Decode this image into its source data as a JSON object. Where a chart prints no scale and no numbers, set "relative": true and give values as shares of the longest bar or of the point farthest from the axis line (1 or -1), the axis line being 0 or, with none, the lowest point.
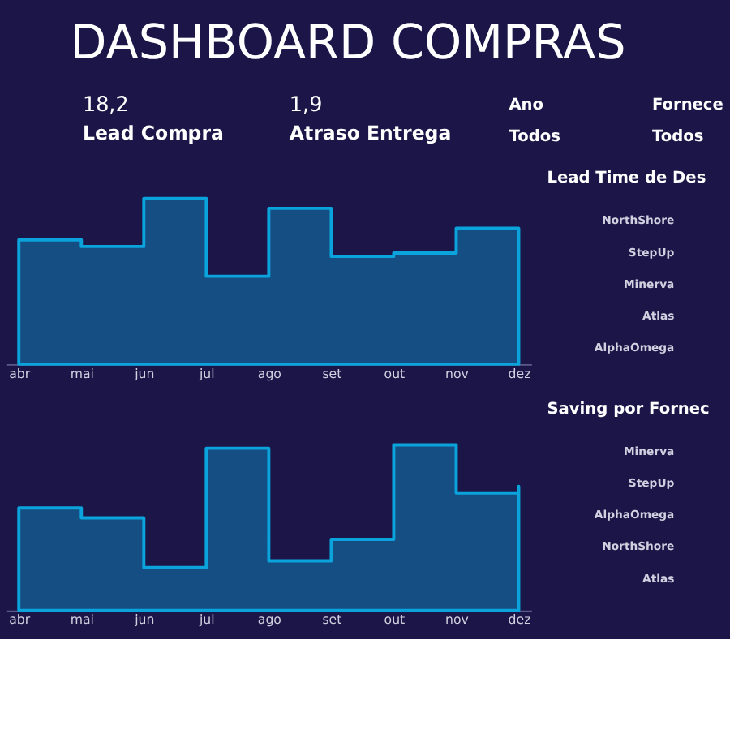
{
  "chart_data": [
    {
      "type": "other",
      "title": "DASHBOARD COMPRAS",
      "annotations": [
        "18,2",
        "Lead Compra",
        "1,9",
        "Atraso Entrega",
        "Ano",
        "Todos",
        "Fornece",
        "Todos"
      ]
    },
    {
      "type": "area",
      "relative": true,
      "categories": [
        "abr",
        "mai",
        "jun",
        "jul",
        "ago",
        "set",
        "out",
        "nov",
        "dez"
      ],
      "series": [
        {
          "color": "#0aa3dc",
          "values": [
            0.75,
            0.71,
            1,
            0.53,
            0.94,
            0.65,
            0.67,
            0.82,
            0.54
          ]
        }
      ]
    },
    {
      "type": "area",
      "relative": true,
      "categories": [
        "abr",
        "mai",
        "jun",
        "jul",
        "ago",
        "set",
        "out",
        "nov",
        "dez"
      ],
      "series": [
        {
          "color": "#0aa3dc",
          "values": [
            0.62,
            0.56,
            0.26,
            0.98,
            0.3,
            0.43,
            1,
            0.71,
            0.75
          ]
        }
      ]
    },
    {
      "type": "other",
      "title": "Lead Time de Des",
      "categories": [
        "NorthShore",
        "StepUp",
        "Minerva",
        "Atlas",
        "AlphaOmega"
      ]
    },
    {
      "type": "other",
      "title": "Saving por Fornec",
      "categories": [
        "Minerva",
        "StepUp",
        "AlphaOmega",
        "NorthShore",
        "Atlas"
      ]
    }
  ]
}
